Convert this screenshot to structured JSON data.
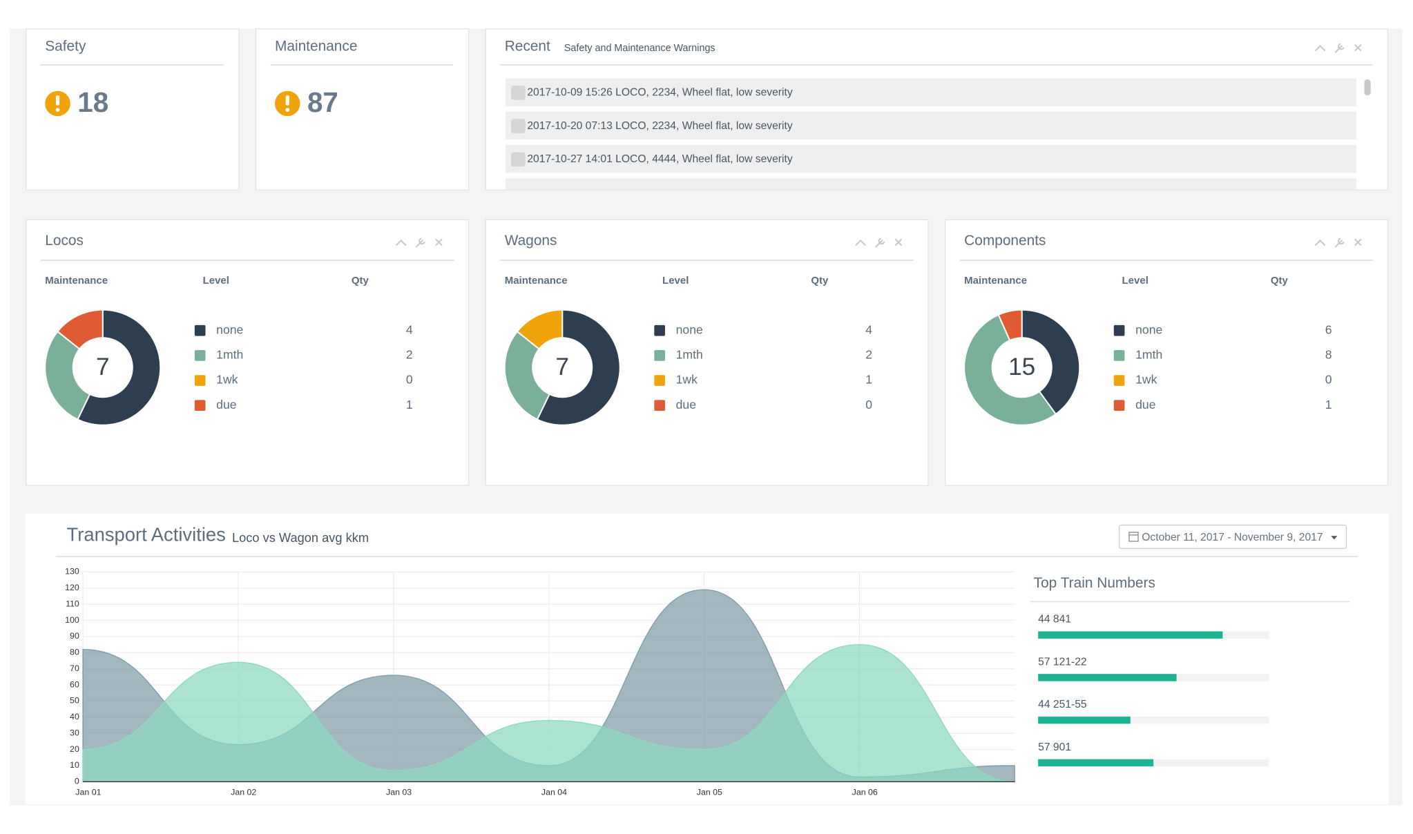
{
  "safety": {
    "title": "Safety",
    "count": 18
  },
  "maintenance": {
    "title": "Maintenance",
    "count": 87
  },
  "recent": {
    "title": "Recent",
    "subtitle": "Safety and Maintenance Warnings",
    "items": [
      "2017-10-09 15:26 LOCO, 2234, Wheel flat, low severity",
      "2017-10-20 07:13 LOCO, 2234, Wheel flat, low severity",
      "2017-10-27 14:01 LOCO, 4444, Wheel flat, low severity"
    ]
  },
  "chart_data": [
    {
      "type": "donut",
      "title": "Locos",
      "columns": [
        "Maintenance",
        "Level",
        "Qty"
      ],
      "total": 7,
      "categories": [
        "none",
        "1mth",
        "1wk",
        "due"
      ],
      "values": [
        4,
        2,
        0,
        1
      ],
      "colors": [
        "#2c3e50",
        "#7ab09a",
        "#f0a30a",
        "#e05a34"
      ]
    },
    {
      "type": "donut",
      "title": "Wagons",
      "columns": [
        "Maintenance",
        "Level",
        "Qty"
      ],
      "total": 7,
      "categories": [
        "none",
        "1mth",
        "1wk",
        "due"
      ],
      "values": [
        4,
        2,
        1,
        0
      ],
      "colors": [
        "#2c3e50",
        "#7ab09a",
        "#f0a30a",
        "#e05a34"
      ]
    },
    {
      "type": "donut",
      "title": "Components",
      "columns": [
        "Maintenance",
        "Level",
        "Qty"
      ],
      "total": 15,
      "categories": [
        "none",
        "1mth",
        "1wk",
        "due"
      ],
      "values": [
        6,
        8,
        0,
        1
      ],
      "colors": [
        "#2c3e50",
        "#7ab09a",
        "#f0a30a",
        "#e05a34"
      ]
    },
    {
      "type": "area",
      "title": "Transport Activities",
      "subtitle": "Loco vs Wagon avg kkm",
      "date_range": "October 11, 2017 - November 9, 2017",
      "categories": [
        "Jan 01",
        "Jan 02",
        "Jan 03",
        "Jan 04",
        "Jan 05",
        "Jan 06",
        null
      ],
      "series": [
        {
          "color": "#7e9ba7",
          "values": [
            82,
            23,
            66,
            10,
            119,
            3,
            10
          ]
        },
        {
          "color": "#8ed8bf",
          "values": [
            20,
            74,
            7,
            38,
            20,
            85,
            0
          ]
        }
      ],
      "ylim": [
        0,
        130
      ],
      "yticks": [
        0,
        10,
        20,
        30,
        40,
        50,
        60,
        70,
        80,
        90,
        100,
        110,
        120,
        130
      ],
      "grid": true
    },
    {
      "type": "progress",
      "title": "Top Train Numbers",
      "categories": [
        "44 841",
        "57 121-22",
        "44 251-55",
        "57 901"
      ],
      "values": [
        80,
        60,
        40,
        50
      ],
      "color": "#1fb393",
      "xlim": [
        0,
        100
      ]
    }
  ]
}
